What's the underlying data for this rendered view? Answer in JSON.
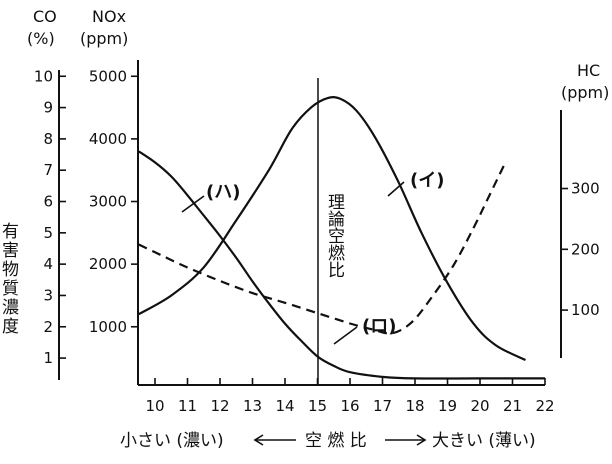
{
  "chart_data": {
    "type": "line",
    "x": {
      "ticks": [
        10,
        11,
        12,
        13,
        14,
        15,
        16,
        17,
        18,
        19,
        20,
        21,
        22
      ],
      "range": [
        9.3,
        22.3
      ],
      "label_left": "小さい (濃い)",
      "label_center": "空 燃 比",
      "label_right": "大きい (薄い)"
    },
    "axes": {
      "co": {
        "header": "CO",
        "unit": "(%)",
        "ticks": [
          1,
          2,
          3,
          4,
          5,
          6,
          7,
          8,
          9,
          10
        ],
        "range": [
          0.3,
          10.2
        ]
      },
      "nox": {
        "header": "NOx",
        "unit": "(ppm)",
        "ticks": [
          1000,
          2000,
          3000,
          4000,
          5000
        ],
        "range": [
          150,
          5100
        ]
      },
      "hc": {
        "header": "HC",
        "unit": "(ppm)",
        "ticks": [
          100,
          200,
          300
        ],
        "range": [
          -15,
          495
        ]
      }
    },
    "ylabel": "有害物質濃度",
    "stoich": {
      "x": 15,
      "label": "理論空燃比"
    },
    "series": [
      {
        "name": "(イ)",
        "axis": "nox",
        "style": "solid",
        "x": [
          9.5,
          10.5,
          11.5,
          12.5,
          13.5,
          14.2,
          14.8,
          15.3,
          15.7,
          16.2,
          16.8,
          17.5,
          18.2,
          19,
          19.8,
          20.5,
          21.4
        ],
        "y": [
          1200,
          1500,
          1950,
          2700,
          3500,
          4150,
          4500,
          4650,
          4640,
          4450,
          4000,
          3300,
          2500,
          1700,
          1050,
          700,
          470
        ]
      },
      {
        "name": "(ロ)",
        "axis": "hc",
        "style": "dashed",
        "x": [
          9.5,
          10.2,
          11,
          12,
          13,
          14,
          15,
          16,
          16.7,
          17.3,
          17.9,
          18.5,
          19.2,
          19.8,
          20.3,
          20.8
        ],
        "y": [
          208,
          190,
          170,
          148,
          128,
          112,
          95,
          78,
          68,
          62,
          80,
          120,
          175,
          235,
          290,
          345
        ]
      },
      {
        "name": "(ハ)",
        "axis": "co",
        "style": "solid",
        "x": [
          9.5,
          10,
          10.5,
          11,
          11.5,
          12,
          12.5,
          13,
          13.5,
          14,
          14.5,
          15,
          15.5,
          16,
          17,
          18,
          20,
          22
        ],
        "y": [
          7.6,
          7.25,
          6.8,
          6.2,
          5.55,
          4.9,
          4.2,
          3.45,
          2.75,
          2.1,
          1.55,
          1.05,
          0.75,
          0.55,
          0.4,
          0.35,
          0.35,
          0.35
        ]
      }
    ]
  }
}
